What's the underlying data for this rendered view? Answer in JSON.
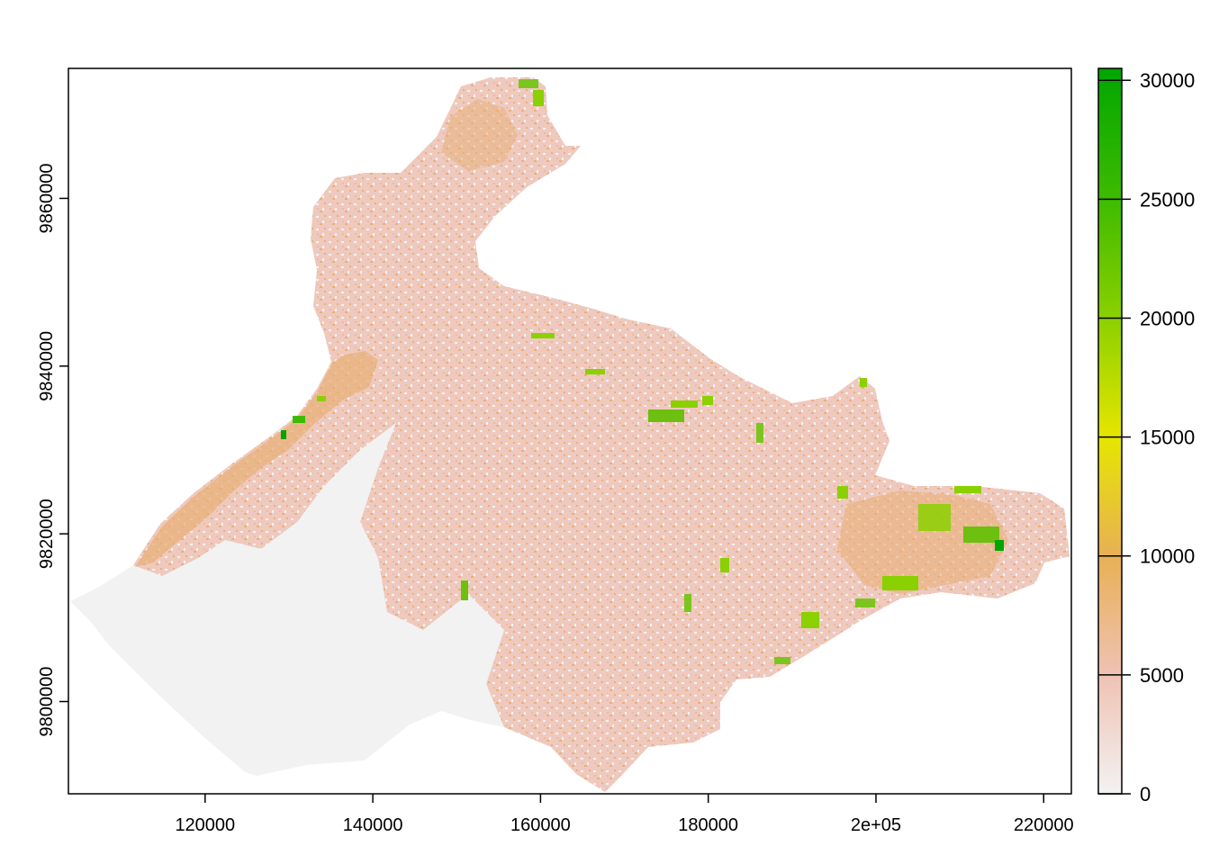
{
  "map": {
    "x_ticks": [
      {
        "value": 120000,
        "label": "120000"
      },
      {
        "value": 140000,
        "label": "140000"
      },
      {
        "value": 160000,
        "label": "160000"
      },
      {
        "value": 180000,
        "label": "180000"
      },
      {
        "value": 200000,
        "label": "2e+05"
      },
      {
        "value": 220000,
        "label": "220000"
      }
    ],
    "y_ticks": [
      {
        "value": 9800000,
        "label": "9800000"
      },
      {
        "value": 9820000,
        "label": "9820000"
      },
      {
        "value": 9840000,
        "label": "9840000"
      },
      {
        "value": 9860000,
        "label": "9860000"
      }
    ],
    "x_range": [
      103700,
      223300
    ],
    "y_range": [
      9789000,
      9875500
    ],
    "region_fill_color": "#F2F2F2",
    "hotspot_color": "#52B51A"
  },
  "legend": {
    "ticks": [
      {
        "value": 0,
        "label": "0"
      },
      {
        "value": 5000,
        "label": "5000"
      },
      {
        "value": 10000,
        "label": "10000"
      },
      {
        "value": 15000,
        "label": "15000"
      },
      {
        "value": 20000,
        "label": "20000"
      },
      {
        "value": 25000,
        "label": "25000"
      },
      {
        "value": 30000,
        "label": "30000"
      }
    ],
    "range": [
      0,
      30500
    ],
    "color_stops": [
      {
        "value": 0,
        "color": "#F2F2F2"
      },
      {
        "value": 5000,
        "color": "#EFC2B3"
      },
      {
        "value": 10000,
        "color": "#E8B055"
      },
      {
        "value": 15000,
        "color": "#E6E600"
      },
      {
        "value": 20000,
        "color": "#8BD000"
      },
      {
        "value": 25000,
        "color": "#3EBB00"
      },
      {
        "value": 30500,
        "color": "#00A600"
      }
    ]
  }
}
